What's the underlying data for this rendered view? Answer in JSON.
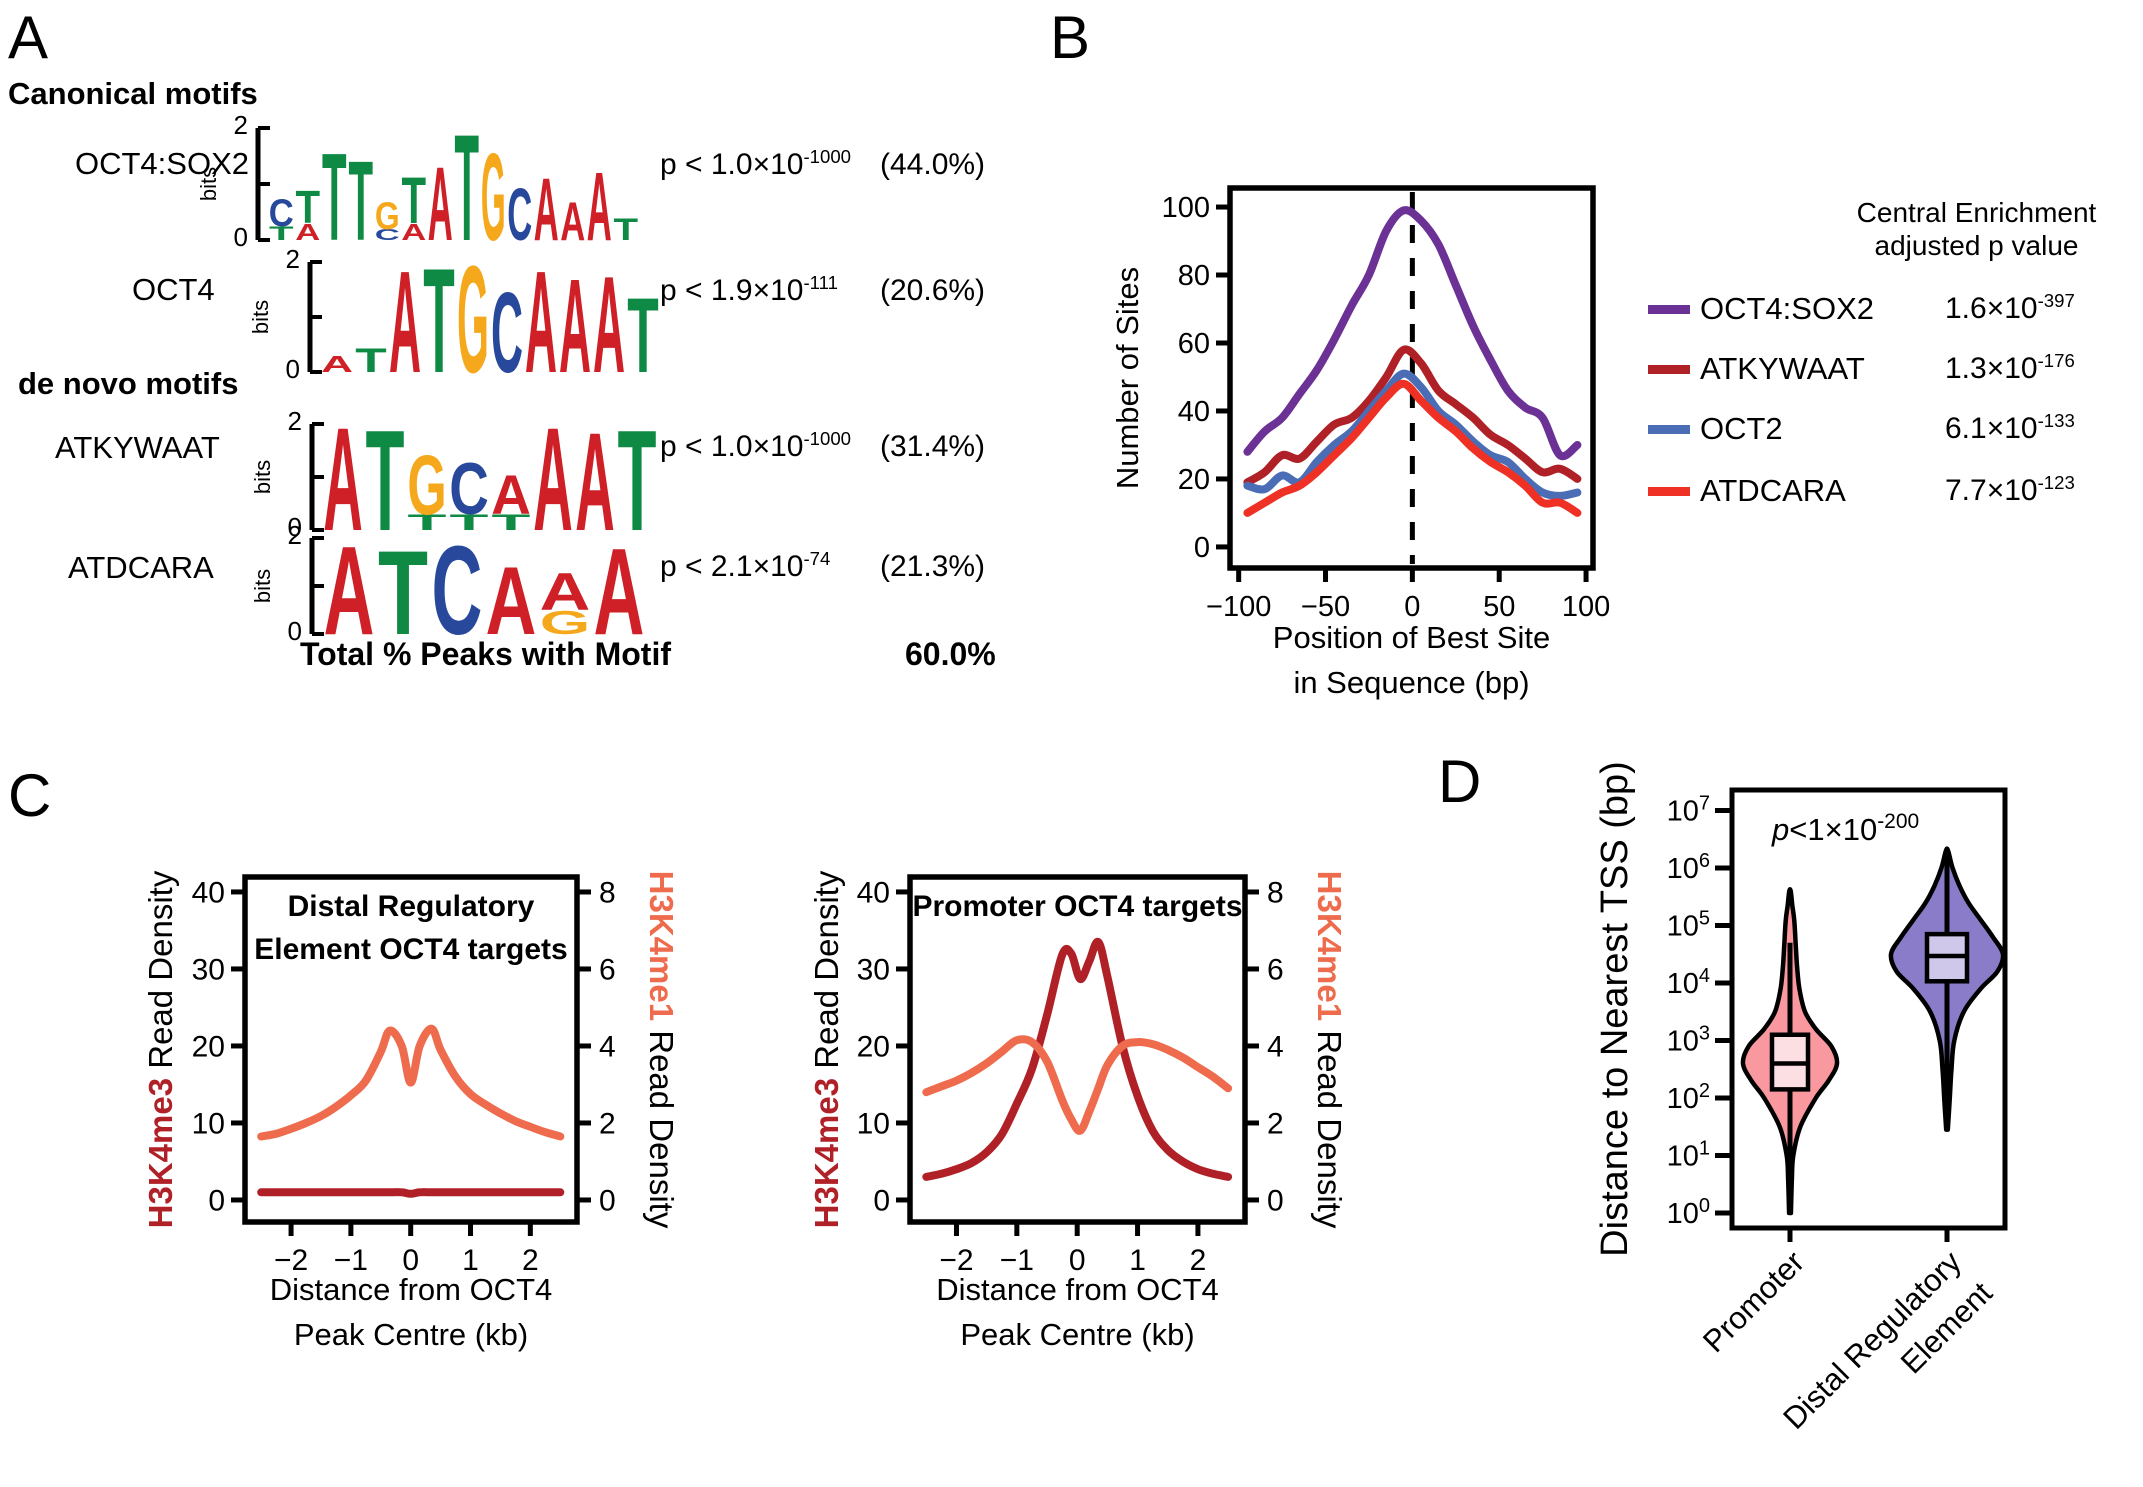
{
  "panel_labels": {
    "A": "A",
    "B": "B",
    "C": "C",
    "D": "D"
  },
  "colors": {
    "purple": "#6B3195",
    "dark_red": "#B02127",
    "blue": "#4A6DB5",
    "red": "#EE3124",
    "salmon": "#EE6C4D",
    "violin_pink": "#F9999F",
    "violin_pink_box": "#FBDFE2",
    "violin_purple": "#8A7CC8",
    "violin_purple_box": "#CFC8EA",
    "logo_A": "#CE2026",
    "logo_T": "#0E8A44",
    "logo_G": "#F5A81C",
    "logo_C": "#28499B"
  },
  "panelA": {
    "canonical_header": "Canonical motifs",
    "denovo_header": "de novo motifs",
    "bits_label": "bits",
    "bits_top": "2",
    "bits_bottom": "0",
    "rows": [
      {
        "name": "OCT4:SOX2",
        "p_base": "p < 1.0×10",
        "p_exp": "-1000",
        "pct": "(44.0%)",
        "logo": [
          [
            [
              "C",
              0.5
            ],
            [
              "T",
              0.25
            ]
          ],
          [
            [
              "T",
              0.6
            ],
            [
              "A",
              0.3
            ]
          ],
          [
            [
              "T",
              1.6
            ]
          ],
          [
            [
              "T",
              1.45
            ]
          ],
          [
            [
              "G",
              0.5
            ],
            [
              "C",
              0.2
            ]
          ],
          [
            [
              "T",
              0.85
            ],
            [
              "A",
              0.3
            ]
          ],
          [
            [
              "A",
              1.35
            ]
          ],
          [
            [
              "T",
              1.95
            ]
          ],
          [
            [
              "G",
              1.6
            ]
          ],
          [
            [
              "C",
              0.95
            ]
          ],
          [
            [
              "A",
              1.15
            ]
          ],
          [
            [
              "A",
              0.7
            ]
          ],
          [
            [
              "A",
              1.25
            ]
          ],
          [
            [
              "T",
              0.4
            ]
          ]
        ]
      },
      {
        "name": "OCT4",
        "p_base": "p < 1.9×10",
        "p_exp": "-111",
        "pct": "(20.6%)",
        "logo": [
          [
            [
              "A",
              0.3
            ]
          ],
          [
            [
              "T",
              0.45
            ]
          ],
          [
            [
              "A",
              1.9
            ]
          ],
          [
            [
              "T",
              1.95
            ]
          ],
          [
            [
              "G",
              2.0
            ]
          ],
          [
            [
              "C",
              1.5
            ]
          ],
          [
            [
              "A",
              1.9
            ]
          ],
          [
            [
              "A",
              1.75
            ]
          ],
          [
            [
              "A",
              1.8
            ]
          ],
          [
            [
              "T",
              1.4
            ]
          ]
        ]
      },
      {
        "name": "ATKYWAAT",
        "p_base": "p < 1.0×10",
        "p_exp": "-1000",
        "pct": "(31.4%)",
        "logo": [
          [
            [
              "A",
              2.0
            ]
          ],
          [
            [
              "T",
              1.95
            ]
          ],
          [
            [
              "G",
              1.15
            ],
            [
              "T",
              0.3
            ]
          ],
          [
            [
              "C",
              1.0
            ],
            [
              "T",
              0.3
            ]
          ],
          [
            [
              "A",
              0.75
            ],
            [
              "T",
              0.3
            ]
          ],
          [
            [
              "A",
              2.0
            ]
          ],
          [
            [
              "A",
              1.9
            ]
          ],
          [
            [
              "T",
              1.95
            ]
          ]
        ]
      },
      {
        "name": "ATDCARA",
        "p_base": "p < 2.1×10",
        "p_exp": "-74",
        "pct": "(21.3%)",
        "logo": [
          [
            [
              "A",
              1.9
            ]
          ],
          [
            [
              "T",
              1.8
            ]
          ],
          [
            [
              "C",
              1.9
            ]
          ],
          [
            [
              "A",
              1.45
            ]
          ],
          [
            [
              "A",
              0.8
            ],
            [
              "G",
              0.5
            ]
          ],
          [
            [
              "A",
              1.85
            ]
          ]
        ]
      }
    ],
    "total_label": "Total % Peaks with Motif",
    "total_value": "60.0%"
  },
  "legendB": {
    "header_lines": [
      "Central Enrichment",
      "adjusted p value"
    ],
    "entries": [
      {
        "name": "OCT4:SOX2",
        "color_key": "purple",
        "value_base": "1.6×10",
        "value_exp": "-397"
      },
      {
        "name": "ATKYWAAT",
        "color_key": "dark_red",
        "value_base": "1.3×10",
        "value_exp": "-176"
      },
      {
        "name": "OCT2",
        "color_key": "blue",
        "value_base": "6.1×10",
        "value_exp": "-133"
      },
      {
        "name": "ATDCARA",
        "color_key": "red",
        "value_base": "7.7×10",
        "value_exp": "-123"
      }
    ]
  },
  "chart_data": [
    {
      "id": "panelB",
      "type": "line",
      "ylabel": "Number of Sites",
      "xlabel_lines": [
        "Position of Best Site",
        "in Sequence (bp)"
      ],
      "xlim": [
        -105,
        104
      ],
      "ylim": [
        -6.2,
        105.6
      ],
      "xticks": [
        {
          "v": -100,
          "l": "−100"
        },
        {
          "v": -50,
          "l": "−50"
        },
        {
          "v": 0,
          "l": "0"
        },
        {
          "v": 50,
          "l": "50"
        },
        {
          "v": 100,
          "l": "100"
        }
      ],
      "yticks_left": [
        0,
        20,
        40,
        60,
        80,
        100
      ],
      "vline": {
        "x": 0,
        "style": "dashed"
      },
      "x": [
        -95,
        -85,
        -75,
        -65,
        -55,
        -45,
        -35,
        -25,
        -15,
        -5,
        5,
        15,
        25,
        35,
        45,
        55,
        65,
        75,
        85,
        95
      ],
      "series": [
        {
          "name": "OCT4:SOX2",
          "axis": "left",
          "color_key": "purple",
          "values": [
            28,
            34,
            38,
            45,
            52,
            61,
            71,
            80,
            93,
            99,
            96,
            89,
            77,
            65,
            55,
            46,
            41,
            38,
            27,
            30
          ]
        },
        {
          "name": "ATKYWAAT",
          "axis": "left",
          "color_key": "dark_red",
          "values": [
            19,
            22,
            27,
            26,
            31,
            36,
            38,
            43,
            50,
            58,
            54,
            46,
            42,
            38,
            33,
            30,
            26,
            22,
            23,
            20
          ]
        },
        {
          "name": "OCT2",
          "axis": "left",
          "color_key": "blue",
          "values": [
            18,
            17,
            21,
            19,
            25,
            30,
            34,
            40,
            46,
            51,
            47,
            40,
            36,
            31,
            27,
            25,
            20,
            16,
            15,
            16
          ]
        },
        {
          "name": "ATDCARA",
          "axis": "left",
          "color_key": "red",
          "values": [
            10,
            13,
            16,
            18,
            22,
            27,
            32,
            38,
            44,
            48,
            43,
            38,
            34,
            29,
            25,
            22,
            18,
            13,
            13,
            10
          ]
        }
      ]
    },
    {
      "id": "panelC_left",
      "type": "line",
      "title_lines": [
        "Distal Regulatory",
        "Element OCT4 targets"
      ],
      "xlabel_lines": [
        "Distance from OCT4",
        "Peak Centre (kb)"
      ],
      "ylabel_left_colored": "H3K4me3",
      "ylabel_left_rest": " Read Density",
      "ylabel_right_colored": "H3K4me1",
      "ylabel_right_rest": " Read Density",
      "xlim": [
        -2.77,
        2.78
      ],
      "ylim_left": [
        -2.86,
        41.94
      ],
      "ylim_right": [
        -0.572,
        8.389
      ],
      "xticks": [
        {
          "v": -2,
          "l": "−2"
        },
        {
          "v": -1,
          "l": "−1"
        },
        {
          "v": 0,
          "l": "0"
        },
        {
          "v": 1,
          "l": "1"
        },
        {
          "v": 2,
          "l": "2"
        }
      ],
      "yticks_left": [
        0,
        10,
        20,
        30,
        40
      ],
      "yticks_right": [
        0,
        2,
        4,
        6,
        8
      ],
      "x": [
        -2.5,
        -2.25,
        -2,
        -1.75,
        -1.5,
        -1.25,
        -1,
        -0.75,
        -0.5,
        -0.35,
        -0.15,
        0,
        0.15,
        0.35,
        0.5,
        0.75,
        1,
        1.25,
        1.5,
        1.75,
        2,
        2.25,
        2.5
      ],
      "series": [
        {
          "name": "H3K4me3",
          "axis": "left",
          "color_key": "dark_red",
          "values": [
            1,
            1,
            1,
            1,
            1,
            1,
            1,
            1,
            1,
            1,
            1,
            0.8,
            1,
            1,
            1,
            1,
            1,
            1,
            1,
            1,
            1,
            1,
            1
          ]
        },
        {
          "name": "H3K4me1",
          "axis": "right",
          "color_key": "salmon",
          "values": [
            1.65,
            1.72,
            1.85,
            2.0,
            2.18,
            2.42,
            2.72,
            3.1,
            3.85,
            4.4,
            4.0,
            3.05,
            4.0,
            4.45,
            3.9,
            3.2,
            2.75,
            2.48,
            2.25,
            2.05,
            1.9,
            1.76,
            1.65
          ]
        }
      ]
    },
    {
      "id": "panelC_right",
      "type": "line",
      "title_lines": [
        "Promoter OCT4 targets"
      ],
      "xlabel_lines": [
        "Distance from OCT4",
        "Peak Centre (kb)"
      ],
      "ylabel_left_colored": "H3K4me3",
      "ylabel_left_rest": " Read Density",
      "ylabel_right_colored": "H3K4me1",
      "ylabel_right_rest": " Read Density",
      "xlim": [
        -2.77,
        2.78
      ],
      "ylim_left": [
        -2.86,
        41.94
      ],
      "ylim_right": [
        -0.572,
        8.389
      ],
      "xticks": [
        {
          "v": -2,
          "l": "−2"
        },
        {
          "v": -1,
          "l": "−1"
        },
        {
          "v": 0,
          "l": "0"
        },
        {
          "v": 1,
          "l": "1"
        },
        {
          "v": 2,
          "l": "2"
        }
      ],
      "yticks_left": [
        0,
        10,
        20,
        30,
        40
      ],
      "yticks_right": [
        0,
        2,
        4,
        6,
        8
      ],
      "x": [
        -2.5,
        -2.25,
        -2,
        -1.75,
        -1.5,
        -1.25,
        -1,
        -0.75,
        -0.5,
        -0.25,
        -0.1,
        0.05,
        0.2,
        0.35,
        0.5,
        0.75,
        1,
        1.25,
        1.5,
        1.75,
        2,
        2.25,
        2.5
      ],
      "series": [
        {
          "name": "H3K4me3",
          "axis": "left",
          "color_key": "dark_red",
          "values": [
            3,
            3.4,
            4,
            4.8,
            6.2,
            8.5,
            12.5,
            17,
            24,
            31.8,
            32,
            28.7,
            31,
            33.5,
            29,
            20,
            13.5,
            9,
            6.5,
            5,
            4,
            3.4,
            3
          ]
        },
        {
          "name": "H3K4me1",
          "axis": "right",
          "color_key": "salmon",
          "values": [
            2.8,
            2.95,
            3.1,
            3.3,
            3.55,
            3.85,
            4.15,
            4.1,
            3.6,
            2.6,
            2.1,
            1.8,
            2.3,
            2.9,
            3.5,
            4.0,
            4.1,
            4.05,
            3.9,
            3.7,
            3.45,
            3.2,
            2.9
          ]
        }
      ]
    },
    {
      "id": "panelD",
      "type": "violin",
      "ylabel": "Distance to Nearest TSS (bp)",
      "annotation": {
        "p_italic": "p",
        "rest": "<1×10",
        "exp": "-200"
      },
      "tick_base": "10",
      "yticks_exp": [
        0,
        1,
        2,
        3,
        4,
        5,
        6,
        7
      ],
      "categories": [
        {
          "label_lines": [
            "Promoter"
          ],
          "color_key": "violin_pink",
          "box_color_key": "violin_pink_box",
          "profile": [
            [
              0,
              0.02
            ],
            [
              0.6,
              0.04
            ],
            [
              1.0,
              0.07
            ],
            [
              1.5,
              0.22
            ],
            [
              2.0,
              0.55
            ],
            [
              2.3,
              0.82
            ],
            [
              2.6,
              1.0
            ],
            [
              2.9,
              0.88
            ],
            [
              3.2,
              0.55
            ],
            [
              3.5,
              0.32
            ],
            [
              3.9,
              0.2
            ],
            [
              4.3,
              0.15
            ],
            [
              4.7,
              0.12
            ],
            [
              5.1,
              0.09
            ],
            [
              5.35,
              0.05
            ],
            [
              5.6,
              0.015
            ]
          ],
          "box": {
            "q1_log10": 2.15,
            "median_log10": 2.6,
            "q3_log10": 3.1
          },
          "line": {
            "min_log10": 0,
            "max_log10": 4.7
          }
        },
        {
          "label_lines": [
            "Distal Regulatory",
            "Element"
          ],
          "color_key": "violin_purple",
          "box_color_key": "violin_purple_box",
          "profile": [
            [
              1.45,
              0.015
            ],
            [
              2.0,
              0.05
            ],
            [
              2.5,
              0.08
            ],
            [
              3.0,
              0.13
            ],
            [
              3.5,
              0.3
            ],
            [
              3.9,
              0.6
            ],
            [
              4.2,
              0.9
            ],
            [
              4.5,
              1.0
            ],
            [
              4.8,
              0.82
            ],
            [
              5.1,
              0.6
            ],
            [
              5.4,
              0.38
            ],
            [
              5.7,
              0.22
            ],
            [
              6.0,
              0.1
            ],
            [
              6.3,
              0.02
            ]
          ],
          "box": {
            "q1_log10": 4.03,
            "median_log10": 4.47,
            "q3_log10": 4.85
          },
          "line": {
            "min_log10": 1.45,
            "max_log10": 6.3
          }
        }
      ]
    }
  ]
}
